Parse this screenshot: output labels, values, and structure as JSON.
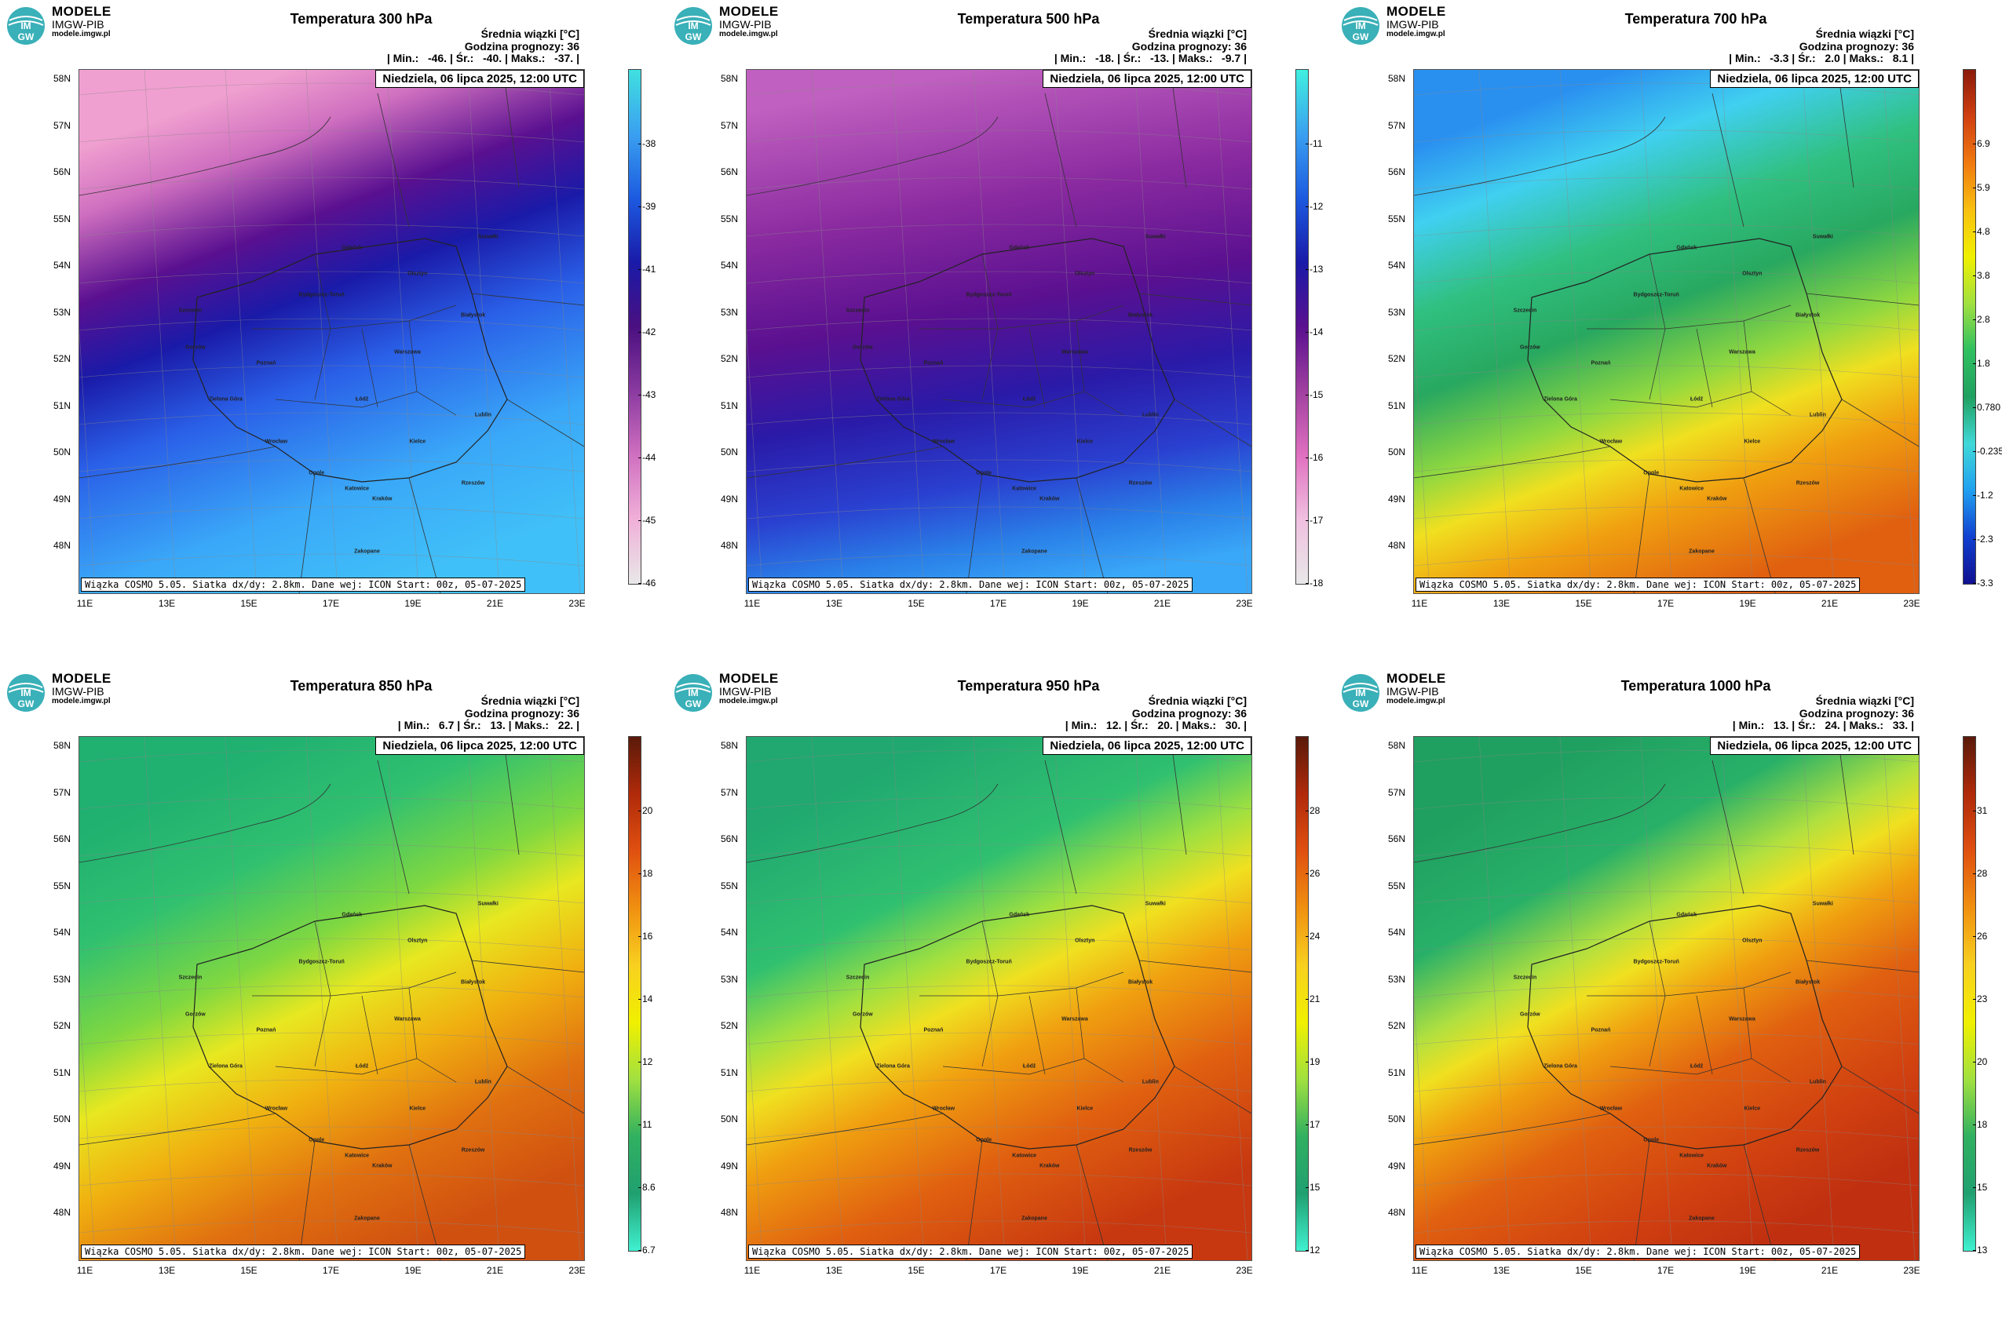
{
  "brand": {
    "line1": "MODELE",
    "line2": "IMGW-PIB",
    "line3": "modele.imgw.pl",
    "logo_text_top": "IM",
    "logo_text_bottom": "GW"
  },
  "common": {
    "subtitle": "Średnia wiązki [°C]",
    "forecast_hour": "Godzina prognozy: 36",
    "date": "Niedziela, 06 lipca 2025, 12:00 UTC",
    "footer": "Wiązka COSMO 5.05. Siatka dx/dy: 2.8km. Dane wej: ICON Start: 00z, 05-07-2025",
    "lat_labels": [
      "58N",
      "57N",
      "56N",
      "55N",
      "54N",
      "53N",
      "52N",
      "51N",
      "50N",
      "49N",
      "48N"
    ],
    "lon_labels": [
      "11E",
      "13E",
      "15E",
      "17E",
      "19E",
      "21E",
      "23E"
    ]
  },
  "cities": [
    "Gdańsk",
    "Olsztyn",
    "Suwałki",
    "Szczecin",
    "Bydgoszcz-Toruń",
    "Białystok",
    "Gorzów",
    "Poznań",
    "Warszawa",
    "Zielona Góra",
    "Łódź",
    "Lublin",
    "Wrocław",
    "Kielce",
    "Opole",
    "Katowice",
    "Kraków",
    "Rzeszów",
    "Zakopane"
  ],
  "panels": [
    {
      "title": "Temperatura 300 hPa",
      "stats": "| Min.:   -46. | Śr.:   -40. | Maks.:   -37. |",
      "cb_ticks": [
        "-38",
        "-39",
        "-41",
        "-42",
        "-43",
        "-44",
        "-45",
        "-46"
      ],
      "cb_colors": [
        "#40e0e0",
        "#3aa0f0",
        "#1c5ae0",
        "#1a1aa8",
        "#4a1080",
        "#8a3aa0",
        "#d070c0",
        "#f0b0d8",
        "#e8e8e8"
      ],
      "field": {
        "type": "band",
        "angle": -20,
        "stops": [
          [
            "#f0a0d0",
            0
          ],
          [
            "#d070c0",
            0.12
          ],
          [
            "#5a1090",
            0.28
          ],
          [
            "#1a1aa8",
            0.42
          ],
          [
            "#2a60e8",
            0.58
          ],
          [
            "#3aa8f8",
            0.8
          ],
          [
            "#40c0f8",
            1
          ]
        ]
      }
    },
    {
      "title": "Temperatura 500 hPa",
      "stats": "| Min.:   -18. | Śr.:   -13. | Maks.:   -9.7 |",
      "cb_ticks": [
        "-11",
        "-12",
        "-13",
        "-14",
        "-15",
        "-16",
        "-17",
        "-18"
      ],
      "cb_colors": [
        "#40f0e0",
        "#3aa0f0",
        "#1c5ae0",
        "#1a1aa8",
        "#5a1090",
        "#a040a0",
        "#e070c0",
        "#f0c0e0",
        "#e8e8e8"
      ],
      "field": {
        "type": "band",
        "angle": -10,
        "stops": [
          [
            "#c060c0",
            0
          ],
          [
            "#8a2aa0",
            0.25
          ],
          [
            "#5a1090",
            0.45
          ],
          [
            "#2a1aa8",
            0.62
          ],
          [
            "#2a40d0",
            0.78
          ],
          [
            "#2a80e8",
            0.9
          ],
          [
            "#3aa8f8",
            1
          ]
        ]
      }
    },
    {
      "title": "Temperatura 700 hPa",
      "stats": "| Min.:   -3.3 | Śr.:   2.0 | Maks.:   8.1 |",
      "cb_ticks": [
        "6.9",
        "5.9",
        "4.8",
        "3.8",
        "2.8",
        "1.8",
        "0.780",
        "-0.235",
        "-1.2",
        "-2.3",
        "-3.3"
      ],
      "cb_colors": [
        "#8b1a0a",
        "#d04010",
        "#f07a10",
        "#f8c010",
        "#f0f000",
        "#a0e040",
        "#30c060",
        "#20a060",
        "#40d8d8",
        "#20a0f0",
        "#1040d0",
        "#101090"
      ],
      "field": {
        "type": "band",
        "angle": -20,
        "stops": [
          [
            "#2a90f0",
            0
          ],
          [
            "#40d0f0",
            0.14
          ],
          [
            "#30c080",
            0.3
          ],
          [
            "#28a860",
            0.45
          ],
          [
            "#90d840",
            0.6
          ],
          [
            "#f0e020",
            0.7
          ],
          [
            "#f0a010",
            0.82
          ],
          [
            "#e06010",
            1
          ]
        ]
      }
    },
    {
      "title": "Temperatura 850 hPa",
      "stats": "| Min.:   6.7 | Śr.:   13. | Maks.:   22. |",
      "cb_ticks": [
        "20",
        "18",
        "16",
        "14",
        "12",
        "11",
        "8.6",
        "6.7"
      ],
      "cb_colors": [
        "#5a1a0a",
        "#b02a0a",
        "#e05010",
        "#f09010",
        "#f8d020",
        "#f0f000",
        "#a0e040",
        "#30b060",
        "#20a070",
        "#40f0d0"
      ],
      "field": {
        "type": "band",
        "angle": -25,
        "stops": [
          [
            "#20b070",
            0
          ],
          [
            "#30c070",
            0.2
          ],
          [
            "#80d840",
            0.38
          ],
          [
            "#e8e820",
            0.5
          ],
          [
            "#f0b010",
            0.65
          ],
          [
            "#e07010",
            0.82
          ],
          [
            "#d05010",
            1
          ]
        ]
      }
    },
    {
      "title": "Temperatura 950 hPa",
      "stats": "| Min.:   12. | Śr.:   20. | Maks.:   30. |",
      "cb_ticks": [
        "28",
        "26",
        "24",
        "21",
        "19",
        "17",
        "15",
        "12"
      ],
      "cb_colors": [
        "#5a1a0a",
        "#b02a0a",
        "#e05010",
        "#f09010",
        "#f8d020",
        "#f0f000",
        "#a0e040",
        "#30b060",
        "#20a070",
        "#40f0d0"
      ],
      "field": {
        "type": "band",
        "angle": -25,
        "stops": [
          [
            "#20a870",
            0
          ],
          [
            "#30c070",
            0.25
          ],
          [
            "#a0e040",
            0.38
          ],
          [
            "#f0e020",
            0.48
          ],
          [
            "#f0a010",
            0.6
          ],
          [
            "#e06010",
            0.78
          ],
          [
            "#c83810",
            1
          ]
        ]
      }
    },
    {
      "title": "Temperatura 1000 hPa",
      "stats": "| Min.:   13. | Śr.:   24. | Maks.:   33. |",
      "cb_ticks": [
        "31",
        "28",
        "26",
        "23",
        "20",
        "18",
        "15",
        "13"
      ],
      "cb_colors": [
        "#5a1a0a",
        "#b02a0a",
        "#e05010",
        "#f09010",
        "#f8d020",
        "#f0f000",
        "#a0e040",
        "#30b060",
        "#20a070",
        "#40f0d0"
      ],
      "field": {
        "type": "band",
        "angle": -28,
        "stops": [
          [
            "#20a060",
            0
          ],
          [
            "#28b068",
            0.2
          ],
          [
            "#b0e040",
            0.34
          ],
          [
            "#f0e020",
            0.42
          ],
          [
            "#f0a010",
            0.52
          ],
          [
            "#e06010",
            0.66
          ],
          [
            "#d04010",
            0.85
          ],
          [
            "#c03010",
            1
          ]
        ]
      }
    }
  ]
}
